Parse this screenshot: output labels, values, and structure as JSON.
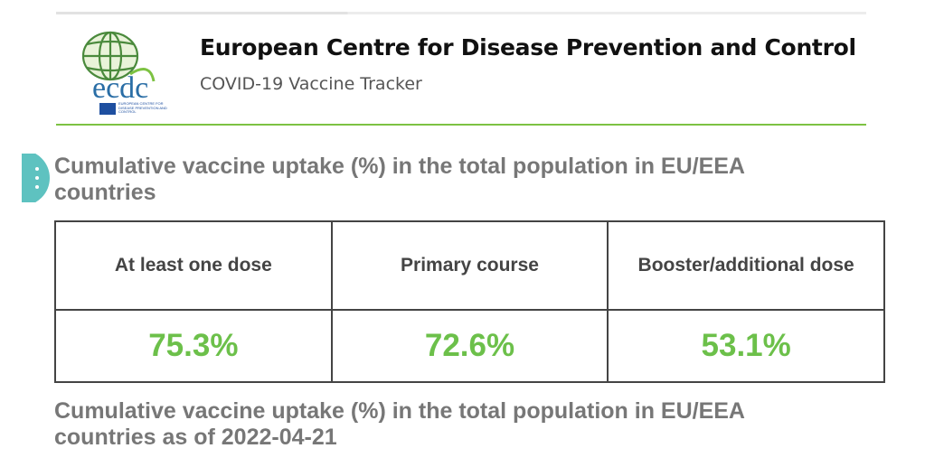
{
  "header": {
    "logo_text": "ecdc",
    "logo_caption": "EUROPEAN CENTRE FOR DISEASE PREVENTION AND CONTROL",
    "title": "European Centre for Disease Prevention and Control",
    "subtitle": "COVID-19 Vaccine Tracker"
  },
  "section": {
    "title": "Cumulative vaccine uptake (%) in the total population in EU/EEA countries"
  },
  "table": {
    "headers": [
      "At least one dose",
      "Primary course",
      "Booster/additional dose"
    ],
    "values": [
      "75.3%",
      "72.6%",
      "53.1%"
    ]
  },
  "second_section": {
    "title": "Cumulative vaccine uptake (%) in the total population in EU/EEA countries as of 2022-04-21"
  }
}
